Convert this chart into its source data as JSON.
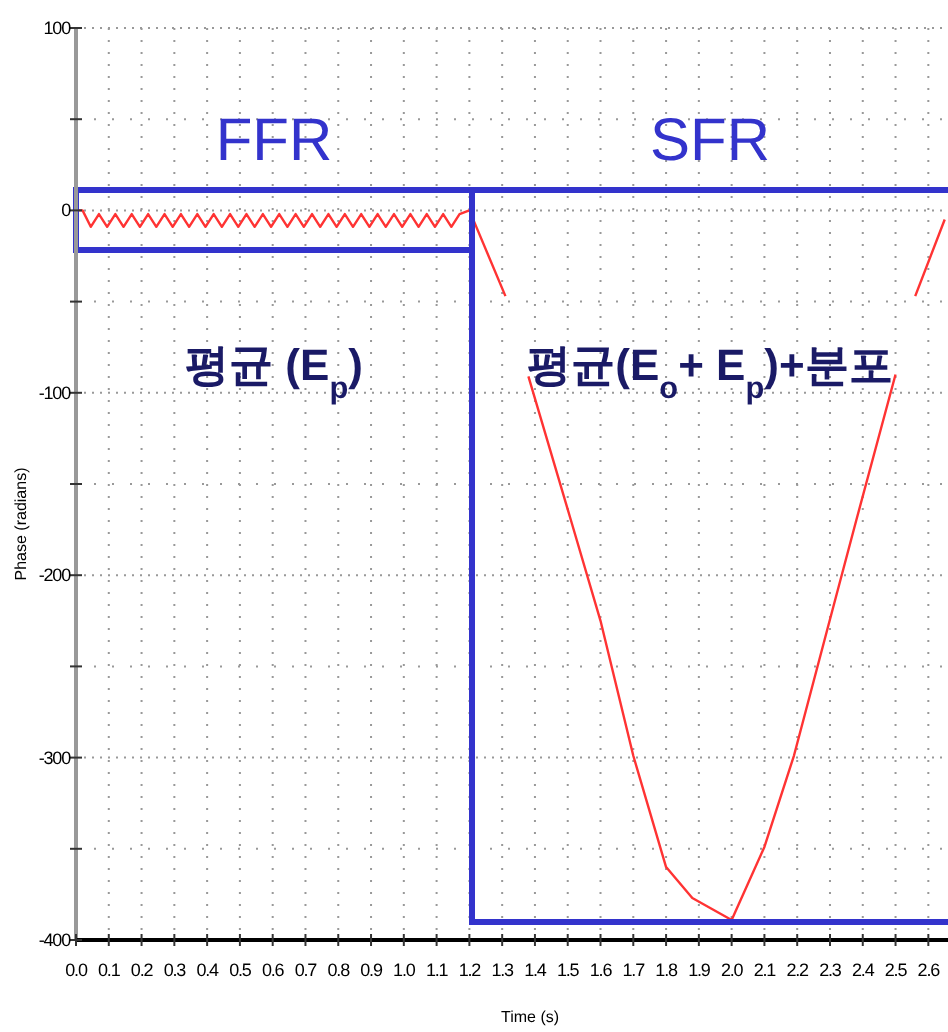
{
  "chart_data": {
    "type": "line",
    "xlabel": "Time (s)",
    "ylabel": "Phase (radians)",
    "xlim": [
      0,
      2.66
    ],
    "ylim": [
      -400,
      100
    ],
    "xticks": [
      {
        "value": 0,
        "label": "0.0"
      },
      0.1,
      0.2,
      0.3,
      0.4,
      0.5,
      0.6,
      0.7,
      0.8,
      0.9,
      {
        "value": 1,
        "label": "1.0"
      },
      1.1,
      1.2,
      1.3,
      1.4,
      1.5,
      1.6,
      1.7,
      1.8,
      1.9,
      {
        "value": 2,
        "label": "2.0"
      },
      2.1,
      2.2,
      2.3,
      2.4,
      2.5,
      2.6
    ],
    "yticks": [
      100,
      {
        "value": 50,
        "label": null
      },
      0,
      {
        "value": -50,
        "label": null
      },
      -100,
      {
        "value": -150,
        "label": null
      },
      -200,
      {
        "value": -250,
        "label": null
      },
      -300,
      {
        "value": -350,
        "label": null
      },
      -400
    ],
    "grid": true,
    "marker": "none",
    "line_style": "solid",
    "series": [
      {
        "color": "#ff3333",
        "x": [
          0,
          0.02,
          0.045,
          0.07,
          0.095,
          0.12,
          0.145,
          0.17,
          0.195,
          0.22,
          0.245,
          0.27,
          0.295,
          0.32,
          0.345,
          0.37,
          0.395,
          0.42,
          0.445,
          0.47,
          0.495,
          0.52,
          0.545,
          0.57,
          0.595,
          0.62,
          0.645,
          0.67,
          0.695,
          0.72,
          0.745,
          0.77,
          0.795,
          0.82,
          0.845,
          0.87,
          0.895,
          0.92,
          0.945,
          0.97,
          0.995,
          1.02,
          1.045,
          1.07,
          1.095,
          1.12,
          1.145,
          1.17,
          1.2,
          1.31,
          1.345,
          1.38,
          1.51,
          1.6,
          1.7,
          1.8,
          1.88,
          2.0,
          2.1,
          2.19,
          2.29,
          2.38,
          2.5,
          2.53,
          2.56,
          2.65
        ],
        "values": [
          0,
          0,
          -9,
          -2,
          -9,
          -2,
          -9,
          -2,
          -9,
          -2,
          -9,
          -2,
          -9,
          -2,
          -9,
          -2,
          -9,
          -2,
          -9,
          -2,
          -9,
          -2,
          -9,
          -2,
          -9,
          -2,
          -9,
          -2,
          -9,
          -2,
          -9,
          -2,
          -9,
          -2,
          -9,
          -2,
          -9,
          -2,
          -9,
          -2,
          -9,
          -2,
          -9,
          -2,
          -9,
          -2,
          -9,
          -2,
          0,
          -47,
          null,
          -91,
          -170,
          -225,
          -299,
          -360,
          -377,
          -389,
          -349,
          -299,
          -231,
          -170,
          -90,
          null,
          -47,
          -5
        ]
      }
    ],
    "annotations": [
      "FFR",
      "SFR",
      "평균 (E$_{p}$)",
      "평균(E$_{o}$+ E$_{p}$)+분포"
    ]
  }
}
